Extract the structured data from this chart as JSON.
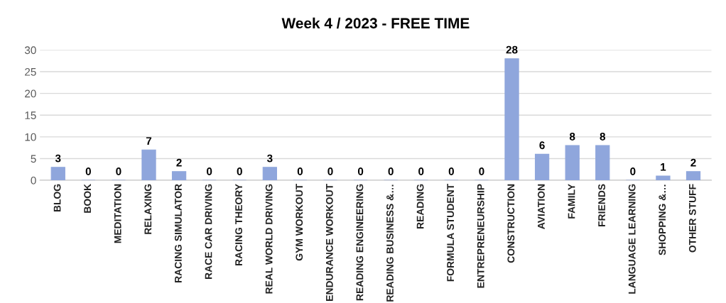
{
  "chart_data": {
    "type": "bar",
    "title": "Week 4 / 2023 - FREE TIME",
    "categories": [
      "BLOG",
      "BOOK",
      "MEDITATION",
      "RELAXING",
      "RACING SIMULATOR",
      "RACE CAR DRIVING",
      "RACING THEORY",
      "REAL WORLD DRIVING",
      "GYM WORKOUT",
      "ENDURANCE WORKOUT",
      "READING ENGINEERING",
      "READING BUSINESS &…",
      "READING",
      "FORMULA STUDENT",
      "ENTREPRENEURSHIP",
      "CONSTRUCTION",
      "AVIATION",
      "FAMILY",
      "FRIENDS",
      "LANGUAGE LEARNING",
      "SHOPPING &…",
      "OTHER STUFF"
    ],
    "values": [
      3,
      0,
      0,
      7,
      2,
      0,
      0,
      3,
      0,
      0,
      0,
      0,
      0,
      0,
      0,
      28,
      6,
      8,
      8,
      0,
      1,
      2
    ],
    "color": "#8fa6dc",
    "ylim": [
      0,
      30
    ],
    "yticks": [
      0,
      5,
      10,
      15,
      20,
      25,
      30
    ],
    "grid": "y",
    "data_labels": true
  }
}
